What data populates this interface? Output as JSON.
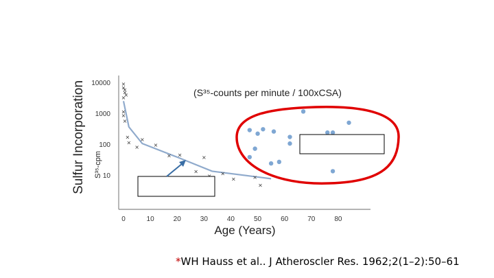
{
  "chart_data": {
    "type": "scatter",
    "title": "(S³⁵-counts per minute / 100xCSA)",
    "ylabel": "Sulfur Incorporation",
    "ylabel_sub": "S³⁵-cpm",
    "xlabel": "Age (Years)",
    "x_ticks": [
      "0",
      "10",
      "20",
      "30",
      "40",
      "50",
      "60",
      "70",
      "80"
    ],
    "y_ticks": [
      "10",
      "100",
      "1000",
      "10000"
    ],
    "xlim": [
      0,
      90
    ],
    "ylim": [
      3,
      15000
    ],
    "y_scale": "log",
    "grid": false,
    "series": [
      {
        "marker": "x",
        "color": "#333333",
        "points": [
          [
            0,
            9500
          ],
          [
            0,
            7200
          ],
          [
            0.5,
            6200
          ],
          [
            0.5,
            5000
          ],
          [
            1,
            4200
          ],
          [
            0,
            3400
          ],
          [
            0,
            1200
          ],
          [
            0,
            900
          ],
          [
            0.5,
            600
          ],
          [
            1.5,
            180
          ],
          [
            2,
            120
          ],
          [
            5,
            85
          ],
          [
            7,
            150
          ],
          [
            12,
            100
          ],
          [
            17,
            45
          ],
          [
            21,
            48
          ],
          [
            27,
            14
          ],
          [
            30,
            40
          ],
          [
            32,
            10
          ],
          [
            37,
            12
          ],
          [
            41,
            8
          ],
          [
            49,
            9
          ],
          [
            51,
            5
          ]
        ]
      },
      {
        "marker": "circle",
        "color": "#7fa7d3",
        "points": [
          [
            47,
            300
          ],
          [
            50,
            230
          ],
          [
            52,
            320
          ],
          [
            56,
            270
          ],
          [
            62,
            180
          ],
          [
            67,
            1200
          ],
          [
            76,
            250
          ],
          [
            78,
            250
          ],
          [
            84,
            520
          ],
          [
            49,
            75
          ],
          [
            58,
            28
          ],
          [
            62,
            110
          ],
          [
            47,
            40
          ],
          [
            55,
            25
          ],
          [
            78,
            14
          ]
        ]
      }
    ],
    "trend_line": {
      "color": "#8faacc",
      "points": [
        [
          0,
          2600
        ],
        [
          2,
          380
        ],
        [
          7,
          110
        ],
        [
          20,
          40
        ],
        [
          33,
          14
        ],
        [
          55,
          8
        ]
      ]
    },
    "annotations": {
      "highlight_ellipse_color": "#e00000",
      "arrow_color": "#3a6ea5"
    }
  },
  "footer": {
    "star": "*",
    "citation": "WH Hauss et al.. J Atheroscler Res. 1962;2(1–2):50–61"
  }
}
